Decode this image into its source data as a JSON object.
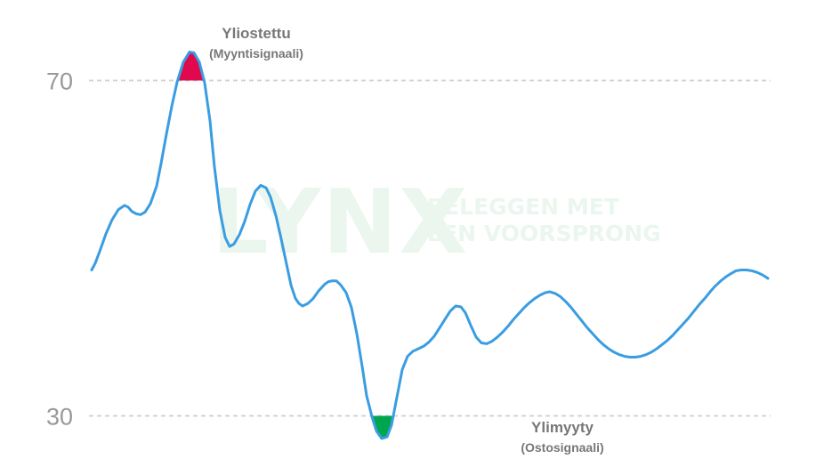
{
  "watermark": {
    "logo": "LYNX",
    "tagline_line1": "BELEGGEN MET",
    "tagline_line2": "EEN VOORSPRONG"
  },
  "annotations": {
    "overbought_title": "Yliostettu",
    "overbought_sub": "(Myyntisignaali)",
    "oversold_title": "Ylimyyty",
    "oversold_sub": "(Ostosignaali)"
  },
  "chart_data": {
    "type": "line",
    "title": "",
    "xlabel": "",
    "ylabel": "",
    "ylim": [
      23.9,
      79.6
    ],
    "yticks": [
      30,
      70
    ],
    "reference_lines": [
      70,
      30
    ],
    "grid": false,
    "x": [
      0,
      4,
      9,
      16,
      23,
      30,
      37,
      41,
      45,
      50,
      55,
      60,
      66,
      73,
      78,
      84,
      90,
      96,
      103,
      110,
      115,
      121,
      127,
      133,
      138,
      144,
      150,
      155,
      160,
      166,
      172,
      178,
      184,
      190,
      196,
      201,
      207,
      213,
      219,
      224,
      229,
      233,
      237,
      243,
      249,
      255,
      262,
      266,
      270,
      275,
      280,
      286,
      292,
      298,
      304,
      309,
      315,
      320,
      326,
      332,
      337,
      343,
      349,
      355,
      361,
      367,
      373,
      379,
      385,
      391,
      397,
      403,
      409,
      415,
      420,
      426,
      432,
      438,
      444,
      450,
      456,
      462,
      468,
      474,
      480,
      486,
      492,
      498,
      504,
      510,
      515,
      521,
      527,
      533,
      539,
      545,
      551,
      557,
      563,
      569,
      575,
      581,
      587,
      593,
      599,
      605,
      611,
      617,
      623,
      629,
      635,
      641,
      647,
      653,
      659,
      665,
      671,
      677,
      683,
      689,
      695,
      701,
      707,
      713,
      719,
      724,
      730,
      736,
      742,
      748,
      754,
      760
    ],
    "values": [
      47.4,
      48.2,
      49.6,
      51.7,
      53.4,
      54.6,
      55.1,
      54.9,
      54.4,
      54.1,
      54.0,
      54.3,
      55.3,
      57.4,
      60.1,
      63.6,
      66.9,
      69.8,
      72.2,
      73.4,
      73.3,
      72.2,
      69.7,
      65.2,
      59.7,
      54.5,
      51.3,
      50.2,
      50.5,
      51.6,
      53.2,
      55.2,
      56.8,
      57.5,
      57.2,
      56.1,
      53.9,
      51.1,
      48.1,
      45.6,
      44.0,
      43.4,
      43.1,
      43.4,
      44.0,
      44.9,
      45.7,
      46.0,
      46.1,
      46.1,
      45.6,
      44.7,
      42.9,
      39.8,
      35.9,
      32.4,
      29.9,
      28.2,
      27.3,
      27.5,
      28.9,
      32.2,
      35.5,
      37.1,
      37.7,
      38.0,
      38.3,
      38.8,
      39.5,
      40.5,
      41.5,
      42.5,
      43.1,
      43.0,
      42.3,
      40.8,
      39.4,
      38.7,
      38.6,
      38.9,
      39.4,
      40.0,
      40.7,
      41.5,
      42.2,
      42.9,
      43.5,
      44.0,
      44.4,
      44.7,
      44.8,
      44.6,
      44.2,
      43.6,
      42.9,
      42.1,
      41.3,
      40.5,
      39.8,
      39.1,
      38.5,
      38.0,
      37.6,
      37.3,
      37.1,
      37.0,
      37.0,
      37.1,
      37.3,
      37.6,
      38.0,
      38.5,
      39.0,
      39.6,
      40.3,
      41.0,
      41.7,
      42.5,
      43.3,
      44.0,
      44.8,
      45.5,
      46.1,
      46.6,
      47.0,
      47.3,
      47.4,
      47.4,
      47.3,
      47.1,
      46.8,
      46.4
    ],
    "colors": {
      "line": "#3a9de1",
      "overbought_fill": "#e0094d",
      "oversold_fill": "#00a64d",
      "reference_line": "#d4d4d4",
      "tick_label": "#999999"
    }
  }
}
